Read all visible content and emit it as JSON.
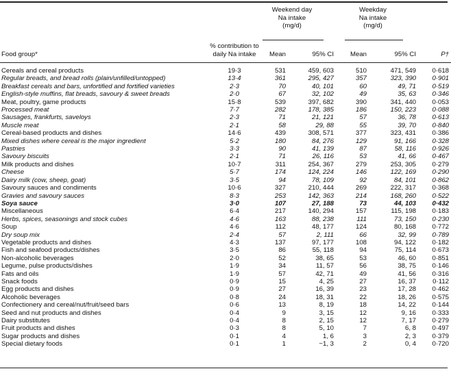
{
  "header": {
    "weekend_group": [
      "Weekend day",
      "Na intake",
      "(mg/d)"
    ],
    "weekday_group": [
      "Weekday",
      "Na intake",
      "(mg/d)"
    ],
    "columns": {
      "food_group": "Food group*",
      "pct": [
        "% contribution to",
        "daily Na intake"
      ],
      "we_mean": "Mean",
      "we_ci": "95% CI",
      "wd_mean": "Mean",
      "wd_ci": "95% CI",
      "p": "P†"
    }
  },
  "rows": [
    {
      "name": "Cereals and cereal products",
      "pct": "19·3",
      "we_mean": "531",
      "we_ci": "459, 603",
      "wd_mean": "510",
      "wd_ci": "471, 549",
      "p": "0·618",
      "style": "normal"
    },
    {
      "name": "Regular breads, and bread rolls (plain/unfilled/untopped)",
      "pct": "13·4",
      "we_mean": "361",
      "we_ci": "295, 427",
      "wd_mean": "357",
      "wd_ci": "323, 390",
      "p": "0·901",
      "style": "italic"
    },
    {
      "name": "Breakfast cereals and bars, unfortified and fortified varieties",
      "pct": "2·3",
      "we_mean": "70",
      "we_ci": "40, 101",
      "wd_mean": "60",
      "wd_ci": "49, 71",
      "p": "0·519",
      "style": "italic"
    },
    {
      "name": "English-style muffins, flat breads, savoury & sweet breads",
      "pct": "2·0",
      "we_mean": "67",
      "we_ci": "32, 102",
      "wd_mean": "49",
      "wd_ci": "35, 63",
      "p": "0·346",
      "style": "italic"
    },
    {
      "name": "Meat, poultry, game products",
      "pct": "15·8",
      "we_mean": "539",
      "we_ci": "397, 682",
      "wd_mean": "390",
      "wd_ci": "341, 440",
      "p": "0·053",
      "style": "normal"
    },
    {
      "name": "Processed meat",
      "pct": "7·7",
      "we_mean": "282",
      "we_ci": "178, 385",
      "wd_mean": "186",
      "wd_ci": "150, 223",
      "p": "0·088",
      "style": "italic"
    },
    {
      "name": "Sausages, frankfurts, saveloys",
      "pct": "2·3",
      "we_mean": "71",
      "we_ci": "21, 121",
      "wd_mean": "57",
      "wd_ci": "36, 78",
      "p": "0·613",
      "style": "italic"
    },
    {
      "name": "Muscle meat",
      "pct": "2·1",
      "we_mean": "58",
      "we_ci": "29, 88",
      "wd_mean": "55",
      "wd_ci": "39, 70",
      "p": "0·840",
      "style": "italic"
    },
    {
      "name": "Cereal-based products and dishes",
      "pct": "14·6",
      "we_mean": "439",
      "we_ci": "308, 571",
      "wd_mean": "377",
      "wd_ci": "323, 431",
      "p": "0·386",
      "style": "normal"
    },
    {
      "name": "Mixed dishes where cereal is the major ingredient",
      "pct": "5·2",
      "we_mean": "180",
      "we_ci": "84, 276",
      "wd_mean": "129",
      "wd_ci": "91, 166",
      "p": "0·328",
      "style": "italic"
    },
    {
      "name": "Pastries",
      "pct": "3·3",
      "we_mean": "90",
      "we_ci": "41, 139",
      "wd_mean": "87",
      "wd_ci": "58, 116",
      "p": "0·926",
      "style": "italic"
    },
    {
      "name": "Savoury biscuits",
      "pct": "2·1",
      "we_mean": "71",
      "we_ci": "26, 116",
      "wd_mean": "53",
      "wd_ci": "41, 66",
      "p": "0·467",
      "style": "italic"
    },
    {
      "name": "Milk products and dishes",
      "pct": "10·7",
      "we_mean": "311",
      "we_ci": "254, 367",
      "wd_mean": "279",
      "wd_ci": "253, 305",
      "p": "0·279",
      "style": "normal"
    },
    {
      "name": "Cheese",
      "pct": "5·7",
      "we_mean": "174",
      "we_ci": "124, 224",
      "wd_mean": "146",
      "wd_ci": "122, 169",
      "p": "0·290",
      "style": "italic"
    },
    {
      "name": "Dairy milk (cow, sheep, goat)",
      "pct": "3·5",
      "we_mean": "94",
      "we_ci": "78, 109",
      "wd_mean": "92",
      "wd_ci": "84, 101",
      "p": "0·862",
      "style": "italic"
    },
    {
      "name": "Savoury sauces and condiments",
      "pct": "10·6",
      "we_mean": "327",
      "we_ci": "210, 444",
      "wd_mean": "269",
      "wd_ci": "222, 317",
      "p": "0·368",
      "style": "normal"
    },
    {
      "name": "Gravies and savoury sauces",
      "pct": "8·3",
      "we_mean": "253",
      "we_ci": "142, 363",
      "wd_mean": "214",
      "wd_ci": "168, 260",
      "p": "0·522",
      "style": "italic"
    },
    {
      "name": "Soya sauce",
      "pct": "3·0",
      "we_mean": "107",
      "we_ci": "27, 188",
      "wd_mean": "73",
      "wd_ci": "44, 103",
      "p": "0·432",
      "style": "bold"
    },
    {
      "name": "Miscellaneous",
      "pct": "6·4",
      "we_mean": "217",
      "we_ci": "140, 294",
      "wd_mean": "157",
      "wd_ci": "115, 198",
      "p": "0·183",
      "style": "normal"
    },
    {
      "name": "Herbs, spices, seasonings and stock cubes",
      "pct": "4·6",
      "we_mean": "163",
      "we_ci": "88, 238",
      "wd_mean": "111",
      "wd_ci": "73, 150",
      "p": "0·230",
      "style": "italic"
    },
    {
      "name": "Soup",
      "pct": "4·6",
      "we_mean": "112",
      "we_ci": "48, 177",
      "wd_mean": "124",
      "wd_ci": "80, 168",
      "p": "0·772",
      "style": "normal"
    },
    {
      "name": "Dry soup mix",
      "pct": "2·4",
      "we_mean": "57",
      "we_ci": "2, 111",
      "wd_mean": "66",
      "wd_ci": "32, 99",
      "p": "0·789",
      "style": "italic"
    },
    {
      "name": "Vegetable products and dishes",
      "pct": "4·3",
      "we_mean": "137",
      "we_ci": "97, 177",
      "wd_mean": "108",
      "wd_ci": "94, 122",
      "p": "0·182",
      "style": "normal"
    },
    {
      "name": "Fish and seafood products/dishes",
      "pct": "3·5",
      "we_mean": "86",
      "we_ci": "55, 118",
      "wd_mean": "94",
      "wd_ci": "75, 114",
      "p": "0·673",
      "style": "normal"
    },
    {
      "name": "Non-alcoholic beverages",
      "pct": "2·0",
      "we_mean": "52",
      "we_ci": "38, 65",
      "wd_mean": "53",
      "wd_ci": "46, 60",
      "p": "0·851",
      "style": "normal"
    },
    {
      "name": "Legume, pulse products/dishes",
      "pct": "1·9",
      "we_mean": "34",
      "we_ci": "11, 57",
      "wd_mean": "56",
      "wd_ci": "38, 75",
      "p": "0·146",
      "style": "normal"
    },
    {
      "name": "Fats and oils",
      "pct": "1·9",
      "we_mean": "57",
      "we_ci": "42, 71",
      "wd_mean": "49",
      "wd_ci": "41, 56",
      "p": "0·316",
      "style": "normal"
    },
    {
      "name": "Snack foods",
      "pct": "0·9",
      "we_mean": "15",
      "we_ci": "4, 25",
      "wd_mean": "27",
      "wd_ci": "16, 37",
      "p": "0·112",
      "style": "normal"
    },
    {
      "name": "Egg products and dishes",
      "pct": "0·9",
      "we_mean": "27",
      "we_ci": "16, 39",
      "wd_mean": "23",
      "wd_ci": "17, 28",
      "p": "0·462",
      "style": "normal"
    },
    {
      "name": "Alcoholic beverages",
      "pct": "0·8",
      "we_mean": "24",
      "we_ci": "18, 31",
      "wd_mean": "22",
      "wd_ci": "18, 26",
      "p": "0·575",
      "style": "normal"
    },
    {
      "name": "Confectionery and cereal/nut/fruit/seed bars",
      "pct": "0·6",
      "we_mean": "13",
      "we_ci": "8, 19",
      "wd_mean": "18",
      "wd_ci": "14, 22",
      "p": "0·144",
      "style": "normal"
    },
    {
      "name": "Seed and nut products and dishes",
      "pct": "0·4",
      "we_mean": "9",
      "we_ci": "3, 15",
      "wd_mean": "12",
      "wd_ci": "9, 16",
      "p": "0·333",
      "style": "normal"
    },
    {
      "name": "Dairy substitutes",
      "pct": "0·4",
      "we_mean": "8",
      "we_ci": "2, 15",
      "wd_mean": "12",
      "wd_ci": "7, 17",
      "p": "0·279",
      "style": "normal"
    },
    {
      "name": "Fruit products and dishes",
      "pct": "0·3",
      "we_mean": "8",
      "we_ci": "5, 10",
      "wd_mean": "7",
      "wd_ci": "6, 8",
      "p": "0·497",
      "style": "normal"
    },
    {
      "name": "Sugar products and dishes",
      "pct": "0·1",
      "we_mean": "4",
      "we_ci": "1, 6",
      "wd_mean": "3",
      "wd_ci": "2, 3",
      "p": "0·379",
      "style": "normal"
    },
    {
      "name": "Special dietary foods",
      "pct": "0·1",
      "we_mean": "1",
      "we_ci": "−1, 3",
      "wd_mean": "2",
      "wd_ci": "0, 4",
      "p": "0·720",
      "style": "normal"
    }
  ]
}
